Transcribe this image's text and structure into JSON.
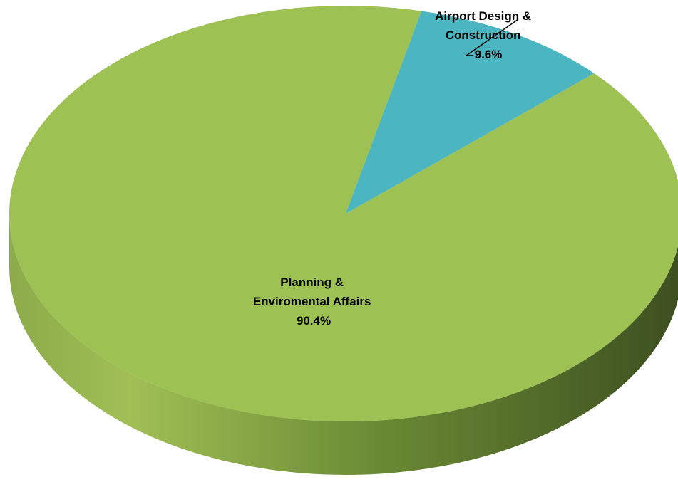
{
  "chart_data": {
    "type": "pie",
    "style": "3d",
    "title": "",
    "slices": [
      {
        "label_lines": [
          "Airport Design &",
          "Construction"
        ],
        "value": 9.6,
        "value_label": "9.6%",
        "color": "#4bb5c1"
      },
      {
        "label_lines": [
          "Planning &",
          "Enviromental Affairs"
        ],
        "value": 90.4,
        "value_label": "90.4%",
        "color": "#9dc153"
      }
    ],
    "side_colors": {
      "light": "#8cab4a",
      "dark": "#3d4f20"
    },
    "legend": "none"
  }
}
